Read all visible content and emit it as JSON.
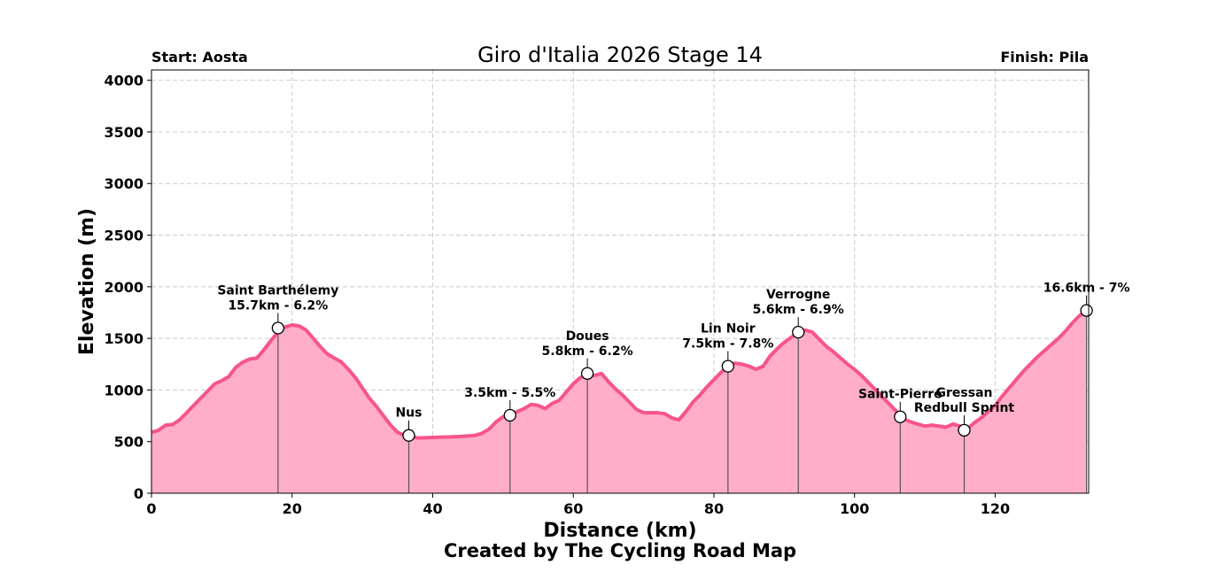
{
  "chart_data": {
    "type": "area",
    "title": "Giro d'Italia 2026 Stage 14",
    "start_label": "Start: Aosta",
    "finish_label": "Finish: Pila",
    "xlabel": "Distance (km)",
    "ylabel": "Elevation (m)",
    "credit": "Created by The Cycling Road Map",
    "xlim": [
      0,
      133.3
    ],
    "ylim": [
      0,
      4100
    ],
    "xticks": [
      "0",
      "20",
      "40",
      "60",
      "80",
      "100",
      "120"
    ],
    "xtick_values": [
      0,
      20,
      40,
      60,
      80,
      100,
      120
    ],
    "yticks": [
      "0",
      "500",
      "1000",
      "1500",
      "2000",
      "2500",
      "3000",
      "3500",
      "4000"
    ],
    "ytick_values": [
      0,
      500,
      1000,
      1500,
      2000,
      2500,
      3000,
      3500,
      4000
    ],
    "grid": true,
    "colors": {
      "fill": "#ffadc8",
      "line": "#f7548d",
      "grid": "#cccccc"
    },
    "profile": {
      "x": [
        0,
        1,
        2,
        3,
        4,
        5,
        6,
        7,
        8,
        9,
        10,
        11,
        12,
        13,
        14,
        15,
        16,
        17,
        18,
        19,
        20,
        21,
        22,
        23,
        24,
        25,
        26,
        27,
        28,
        29,
        30,
        31,
        32,
        33,
        34,
        35,
        36,
        36.5,
        38,
        40,
        42,
        44,
        46,
        47,
        48,
        49,
        50,
        51,
        52,
        53,
        54,
        55,
        56,
        57,
        58,
        59,
        60,
        61,
        62,
        63,
        64,
        65,
        66,
        67,
        68,
        69,
        70,
        71,
        72,
        73,
        74,
        75,
        76,
        77,
        78,
        79,
        80,
        81,
        82,
        83,
        84,
        85,
        86,
        87,
        88,
        89,
        90,
        91,
        92,
        93,
        94,
        95,
        96,
        97,
        98,
        99,
        100,
        101,
        102,
        103,
        104,
        105,
        106,
        106.5,
        107,
        108,
        109,
        110,
        111,
        112,
        113,
        114,
        115,
        115.5,
        116,
        117,
        118,
        119,
        120,
        121,
        122,
        123,
        124,
        125,
        126,
        127,
        128,
        129,
        130,
        131,
        132,
        133
      ],
      "y": [
        590,
        610,
        660,
        665,
        710,
        780,
        850,
        920,
        990,
        1060,
        1090,
        1130,
        1220,
        1270,
        1300,
        1310,
        1390,
        1480,
        1560,
        1610,
        1630,
        1620,
        1580,
        1500,
        1420,
        1350,
        1310,
        1270,
        1200,
        1120,
        1020,
        920,
        840,
        750,
        660,
        590,
        560,
        550,
        535,
        540,
        545,
        550,
        560,
        580,
        620,
        690,
        740,
        760,
        790,
        820,
        860,
        850,
        820,
        870,
        900,
        980,
        1060,
        1120,
        1150,
        1140,
        1160,
        1080,
        1010,
        950,
        880,
        810,
        780,
        780,
        780,
        770,
        730,
        710,
        790,
        880,
        950,
        1030,
        1100,
        1170,
        1230,
        1260,
        1250,
        1230,
        1200,
        1230,
        1330,
        1400,
        1460,
        1510,
        1560,
        1580,
        1560,
        1490,
        1420,
        1370,
        1310,
        1250,
        1200,
        1140,
        1070,
        1000,
        930,
        860,
        790,
        750,
        720,
        690,
        670,
        650,
        660,
        650,
        640,
        670,
        650,
        610,
        620,
        680,
        730,
        790,
        850,
        940,
        1020,
        1100,
        1180,
        1250,
        1320,
        1380,
        1440,
        1500,
        1570,
        1650,
        1720,
        1770
      ]
    },
    "annotations": [
      {
        "x": 18,
        "y": 1600,
        "lines": [
          "Saint Barthélemy",
          "15.7km - 6.2%"
        ]
      },
      {
        "x": 36.6,
        "y": 560,
        "lines": [
          "Nus"
        ]
      },
      {
        "x": 51,
        "y": 755,
        "lines": [
          "3.5km - 5.5%"
        ]
      },
      {
        "x": 62,
        "y": 1160,
        "lines": [
          "Doues",
          "5.8km - 6.2%"
        ]
      },
      {
        "x": 82,
        "y": 1230,
        "lines": [
          "Lin Noir",
          "7.5km - 7.8%"
        ]
      },
      {
        "x": 92,
        "y": 1560,
        "lines": [
          "Verrogne",
          "5.6km - 6.9%"
        ]
      },
      {
        "x": 106.5,
        "y": 740,
        "lines": [
          "Saint-Pierre"
        ]
      },
      {
        "x": 115.6,
        "y": 610,
        "lines": [
          "Gressan",
          "Redbull Sprint"
        ]
      },
      {
        "x": 133,
        "y": 1770,
        "lines": [
          "16.6km - 7%"
        ]
      }
    ]
  }
}
